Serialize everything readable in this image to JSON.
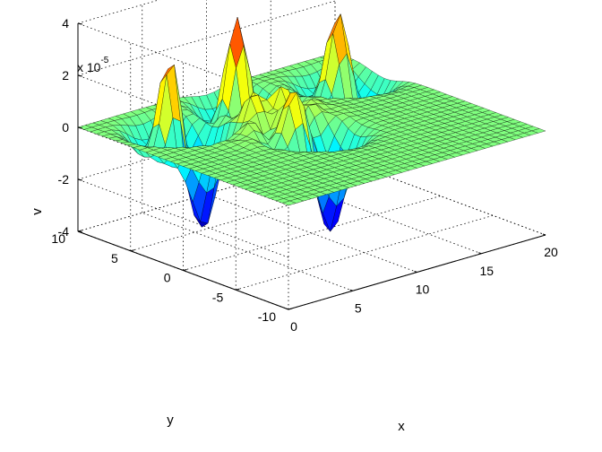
{
  "chart_data": {
    "type": "surface",
    "title": "",
    "xlabel": "x",
    "ylabel": "y",
    "zlabel": "v",
    "xlim": [
      0,
      20
    ],
    "ylim": [
      -10,
      10
    ],
    "zlim": [
      -4,
      4
    ],
    "x_ticks": [
      "0",
      "5",
      "10",
      "15",
      "20"
    ],
    "y_ticks": [
      "-10",
      "-5",
      "0",
      "5",
      "10"
    ],
    "z_ticks": [
      "-4",
      "-2",
      "0",
      "2",
      "4"
    ],
    "z_exponent_prefix": "x 10",
    "z_exponent": "-5",
    "grid": true,
    "colormap": "jet",
    "features": [
      {
        "x": 4,
        "y": 6,
        "peak": 3.3,
        "trough": -3.5
      },
      {
        "x": 10,
        "y": 7,
        "peak": 3.4,
        "trough": -1.5
      },
      {
        "x": 17,
        "y": 6,
        "peak": 2.8,
        "trough": -1.0
      },
      {
        "x": 9,
        "y": 0,
        "peak": 2.0,
        "trough": -3.7
      }
    ]
  }
}
